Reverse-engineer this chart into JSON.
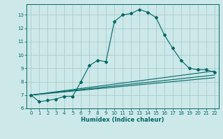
{
  "background_color": "#cce8e8",
  "grid_color": "#aacccc",
  "line_color": "#006666",
  "xlabel": "Humidex (Indice chaleur)",
  "xlim": [
    -0.5,
    22.5
  ],
  "ylim": [
    6,
    13.8
  ],
  "xticks": [
    0,
    1,
    2,
    3,
    4,
    5,
    6,
    7,
    8,
    9,
    10,
    11,
    12,
    13,
    14,
    15,
    16,
    17,
    18,
    19,
    20,
    21,
    22
  ],
  "yticks": [
    6,
    7,
    8,
    9,
    10,
    11,
    12,
    13
  ],
  "series1_x": [
    0,
    1,
    2,
    3,
    4,
    5,
    6,
    7,
    8,
    9,
    10,
    11,
    12,
    13,
    14,
    15,
    16,
    17,
    18,
    19,
    20,
    21,
    22
  ],
  "series1_y": [
    7.0,
    6.5,
    6.6,
    6.7,
    6.9,
    6.9,
    8.0,
    9.2,
    9.6,
    9.5,
    12.5,
    13.0,
    13.1,
    13.4,
    13.2,
    12.8,
    11.5,
    10.5,
    9.6,
    9.0,
    8.9,
    8.9,
    8.7
  ],
  "series2_x": [
    0,
    22
  ],
  "series2_y": [
    7.0,
    8.8
  ],
  "series3_x": [
    0,
    22
  ],
  "series3_y": [
    7.0,
    8.5
  ],
  "series4_x": [
    0,
    22
  ],
  "series4_y": [
    7.0,
    8.3
  ],
  "xlabel_fontsize": 6,
  "tick_fontsize": 5
}
